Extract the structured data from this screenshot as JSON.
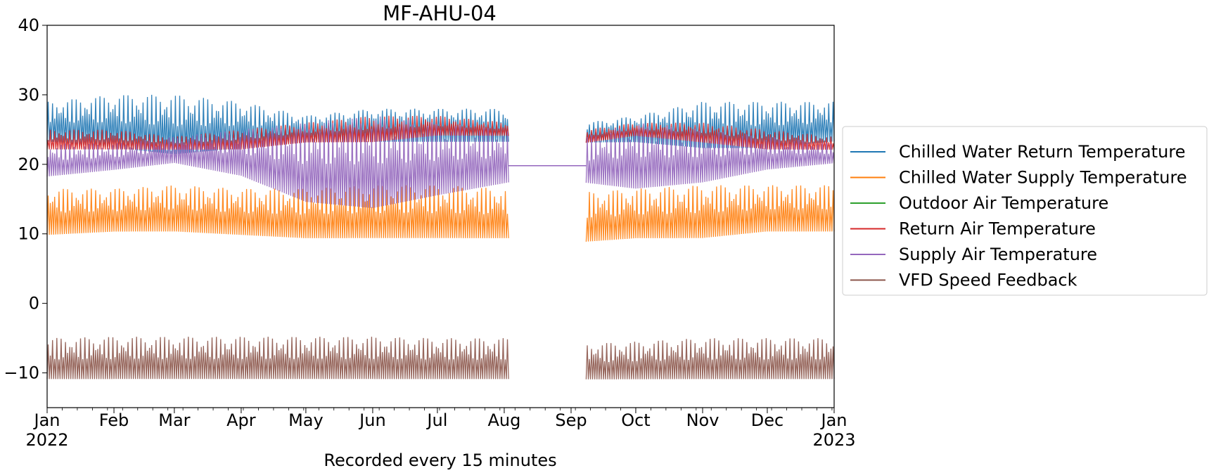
{
  "chart_data": {
    "type": "line",
    "title": "MF-AHU-04",
    "xlabel": "Recorded every 15 minutes",
    "ylabel": "",
    "x_range": [
      "2022-01-01",
      "2023-01-01"
    ],
    "ylim": [
      -15,
      40
    ],
    "yticks": [
      -10,
      0,
      10,
      20,
      30,
      40
    ],
    "ytick_labels": [
      "−10",
      "0",
      "10",
      "20",
      "30",
      "40"
    ],
    "xticks": [
      {
        "date": "2022-01-01",
        "label": "Jan",
        "sublabel": "2022"
      },
      {
        "date": "2022-02-01",
        "label": "Feb",
        "sublabel": ""
      },
      {
        "date": "2022-03-01",
        "label": "Mar",
        "sublabel": ""
      },
      {
        "date": "2022-04-01",
        "label": "Apr",
        "sublabel": ""
      },
      {
        "date": "2022-05-01",
        "label": "May",
        "sublabel": ""
      },
      {
        "date": "2022-06-01",
        "label": "Jun",
        "sublabel": ""
      },
      {
        "date": "2022-07-01",
        "label": "Jul",
        "sublabel": ""
      },
      {
        "date": "2022-08-01",
        "label": "Aug",
        "sublabel": ""
      },
      {
        "date": "2022-09-01",
        "label": "Sep",
        "sublabel": ""
      },
      {
        "date": "2022-10-01",
        "label": "Oct",
        "sublabel": ""
      },
      {
        "date": "2022-11-01",
        "label": "Nov",
        "sublabel": ""
      },
      {
        "date": "2022-12-01",
        "label": "Dec",
        "sublabel": ""
      },
      {
        "date": "2023-01-01",
        "label": "Jan",
        "sublabel": "2023"
      }
    ],
    "grid": false,
    "legend_position": "center-right outside",
    "data_gap": [
      "2022-08-03",
      "2022-09-08"
    ],
    "series": [
      {
        "name": "Chilled Water Return Temperature",
        "color": "#1f77b4",
        "x": [
          "2022-01-01",
          "2022-02-01",
          "2022-03-01",
          "2022-04-01",
          "2022-05-01",
          "2022-06-01",
          "2022-07-01",
          "2022-08-03",
          "2022-09-08",
          "2022-10-01",
          "2022-11-01",
          "2022-12-01",
          "2023-01-01"
        ],
        "low": [
          23,
          22,
          21,
          22,
          23,
          23,
          23,
          23,
          23,
          23,
          22,
          22,
          23
        ],
        "high": [
          29,
          30,
          30,
          29,
          27,
          28,
          28,
          28,
          26,
          27,
          29,
          29,
          29
        ]
      },
      {
        "name": "Chilled Water Supply Temperature",
        "color": "#ff7f0e",
        "x": [
          "2022-01-01",
          "2022-02-01",
          "2022-03-01",
          "2022-04-01",
          "2022-05-01",
          "2022-06-01",
          "2022-07-01",
          "2022-08-03",
          "2022-09-08",
          "2022-10-01",
          "2022-11-01",
          "2022-12-01",
          "2023-01-01"
        ],
        "low": [
          9.5,
          10,
          10,
          9.5,
          9,
          9,
          9,
          9,
          8.5,
          9,
          9,
          10,
          10
        ],
        "high": [
          16.5,
          16.5,
          17,
          16.5,
          16.5,
          17,
          17,
          16.5,
          16,
          16.5,
          17,
          17,
          17
        ]
      },
      {
        "name": "Outdoor Air Temperature",
        "color": "#2ca02c",
        "x": [],
        "low": [],
        "high": []
      },
      {
        "name": "Return Air Temperature",
        "color": "#d62728",
        "x": [
          "2022-01-01",
          "2022-02-01",
          "2022-03-01",
          "2022-04-01",
          "2022-05-01",
          "2022-06-01",
          "2022-07-01",
          "2022-08-03",
          "2022-09-08",
          "2022-10-01",
          "2022-11-01",
          "2022-12-01",
          "2023-01-01"
        ],
        "low": [
          22,
          22,
          22,
          22,
          23,
          23,
          24,
          24,
          23,
          24,
          23,
          22,
          22
        ],
        "high": [
          25,
          25,
          24,
          25,
          26,
          27,
          27,
          26,
          25,
          26,
          26,
          25,
          24
        ]
      },
      {
        "name": "Supply Air Temperature",
        "color": "#9467bd",
        "x": [
          "2022-01-01",
          "2022-02-01",
          "2022-03-01",
          "2022-04-01",
          "2022-05-01",
          "2022-06-01",
          "2022-07-01",
          "2022-08-03",
          "2022-09-08",
          "2022-10-01",
          "2022-11-01",
          "2022-12-01",
          "2023-01-01"
        ],
        "low": [
          18,
          19,
          20,
          18,
          14,
          13,
          15,
          17,
          17,
          16,
          17,
          19,
          20
        ],
        "high": [
          23,
          23,
          24,
          25,
          26,
          27,
          26,
          25,
          24,
          26,
          25,
          24,
          23
        ],
        "flat_gap_value": 19.8
      },
      {
        "name": "VFD Speed Feedback",
        "color": "#8c564b",
        "x": [
          "2022-01-01",
          "2022-02-01",
          "2022-03-01",
          "2022-04-01",
          "2022-05-01",
          "2022-06-01",
          "2022-07-01",
          "2022-08-03",
          "2022-09-08",
          "2022-10-01",
          "2022-11-01",
          "2022-12-01",
          "2023-01-01"
        ],
        "low": [
          -11.2,
          -11.2,
          -11.2,
          -11.2,
          -11.2,
          -11.2,
          -11.2,
          -11.2,
          -11.2,
          -11.2,
          -11.2,
          -11.2,
          -11.2
        ],
        "high": [
          -5,
          -4.8,
          -4.8,
          -4.8,
          -4.8,
          -4.8,
          -5,
          -5,
          -5.8,
          -5.5,
          -5,
          -5,
          -5
        ]
      }
    ]
  }
}
